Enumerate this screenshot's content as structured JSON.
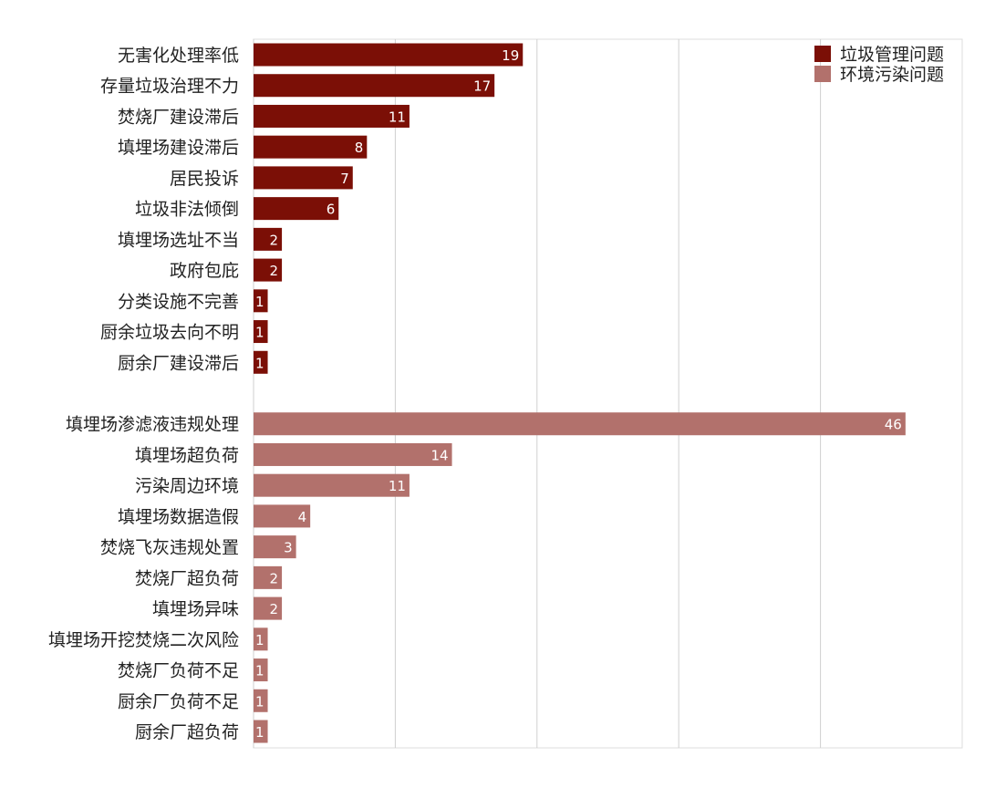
{
  "chart_data": {
    "type": "bar",
    "orientation": "horizontal",
    "title": "",
    "xlabel": "",
    "ylabel": "",
    "xlim": [
      0,
      50
    ],
    "grid": true,
    "legend_position": "top-right",
    "series": [
      {
        "name": "垃圾管理问题",
        "color": "#7b0f06",
        "categories": [
          "无害化处理率低",
          "存量垃圾治理不力",
          "焚烧厂建设滞后",
          "填埋场建设滞后",
          "居民投诉",
          "垃圾非法倾倒",
          "填埋场选址不当",
          "政府包庇",
          "分类设施不完善",
          "厨余垃圾去向不明",
          "厨余厂建设滞后"
        ],
        "values": [
          19,
          17,
          11,
          8,
          7,
          6,
          2,
          2,
          1,
          1,
          1
        ]
      },
      {
        "name": "环境污染问题",
        "color": "#b2716c",
        "categories": [
          "填埋场渗滤液违规处理",
          "填埋场超负荷",
          "污染周边环境",
          "填埋场数据造假",
          "焚烧飞灰违规处置",
          "焚烧厂超负荷",
          "填埋场异味",
          "填埋场开挖焚烧二次风险",
          "焚烧厂负荷不足",
          "厨余厂负荷不足",
          "厨余厂超负荷"
        ],
        "values": [
          46,
          14,
          11,
          4,
          3,
          2,
          2,
          1,
          1,
          1,
          1
        ]
      }
    ]
  }
}
